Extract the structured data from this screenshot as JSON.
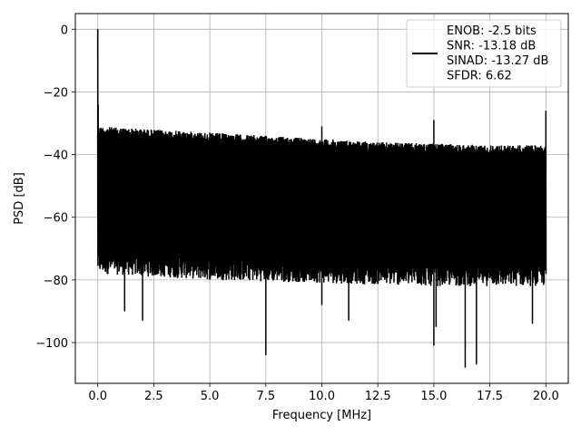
{
  "chart_data": {
    "type": "line",
    "xlabel": "Frequency [MHz]",
    "ylabel": "PSD [dB]",
    "xlim": [
      -1.0,
      21.0
    ],
    "ylim": [
      -113,
      5
    ],
    "xticks": [
      0.0,
      2.5,
      5.0,
      7.5,
      10.0,
      12.5,
      15.0,
      17.5,
      20.0
    ],
    "xtick_labels": [
      "0.0",
      "2.5",
      "5.0",
      "7.5",
      "10.0",
      "12.5",
      "15.0",
      "17.5",
      "20.0"
    ],
    "yticks": [
      0,
      -20,
      -40,
      -60,
      -80,
      -100
    ],
    "ytick_labels": [
      "0",
      "−20",
      "−40",
      "−60",
      "−80",
      "−100"
    ],
    "grid": true,
    "legend_position": "top-right",
    "series": [
      {
        "color": "#000000",
        "x_range": [
          0.0,
          20.0
        ],
        "signal_peak": {
          "x": 0.0,
          "y": 0
        },
        "noise_upper_envelope": [
          {
            "x": 0.0,
            "y": -31
          },
          {
            "x": 2.5,
            "y": -32
          },
          {
            "x": 5.0,
            "y": -33
          },
          {
            "x": 7.5,
            "y": -34
          },
          {
            "x": 10.0,
            "y": -35
          },
          {
            "x": 12.5,
            "y": -36
          },
          {
            "x": 15.0,
            "y": -36.5
          },
          {
            "x": 17.5,
            "y": -37
          },
          {
            "x": 20.0,
            "y": -37
          }
        ],
        "noise_lower_envelope": [
          {
            "x": 0.0,
            "y": -78
          },
          {
            "x": 5.0,
            "y": -80
          },
          {
            "x": 10.0,
            "y": -81
          },
          {
            "x": 15.0,
            "y": -82
          },
          {
            "x": 20.0,
            "y": -82
          }
        ],
        "spurs": [
          {
            "x": 0.02,
            "y": -24
          },
          {
            "x": 10.0,
            "y": -31
          },
          {
            "x": 15.0,
            "y": -29
          },
          {
            "x": 20.0,
            "y": -26
          }
        ],
        "deep_nulls": [
          {
            "x": 1.2,
            "y": -90
          },
          {
            "x": 2.0,
            "y": -93
          },
          {
            "x": 7.5,
            "y": -104
          },
          {
            "x": 10.0,
            "y": -88
          },
          {
            "x": 11.2,
            "y": -93
          },
          {
            "x": 15.0,
            "y": -101
          },
          {
            "x": 15.1,
            "y": -95
          },
          {
            "x": 16.4,
            "y": -108
          },
          {
            "x": 16.9,
            "y": -107
          },
          {
            "x": 19.4,
            "y": -94
          }
        ]
      }
    ],
    "legend": {
      "lines": [
        "ENOB: -2.5 bits",
        "SNR: -13.18 dB",
        "SINAD: -13.27 dB",
        "SFDR: 6.62"
      ]
    }
  }
}
